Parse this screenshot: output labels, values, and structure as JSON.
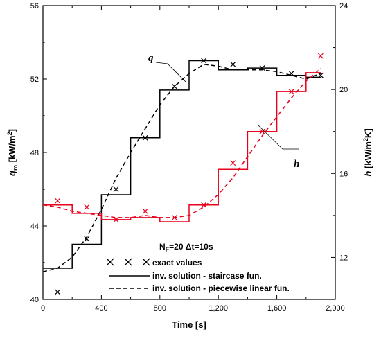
{
  "chart_data": {
    "type": "line",
    "xlabel": "Time [s]",
    "ylabel_left": {
      "main": "q",
      "sub": "m",
      "rest": " [kW/m",
      "sup": "2",
      "end": "]"
    },
    "ylabel_right": {
      "main": "h",
      "rest": " [kW/m",
      "sup": "2",
      "end": "K]"
    },
    "xlim": [
      0,
      2000
    ],
    "ylim_left": [
      40,
      56
    ],
    "ylim_right": [
      10,
      24
    ],
    "x_ticks": [
      0,
      400,
      800,
      1200,
      1600,
      2000
    ],
    "x_tick_labels": [
      "0",
      "400",
      "800",
      "1,200",
      "1,600",
      "2,000"
    ],
    "y_left_ticks": [
      40,
      44,
      48,
      52,
      56
    ],
    "y_left_tick_labels": [
      "40",
      "44",
      "48",
      "52",
      "56"
    ],
    "y_right_ticks": [
      12,
      16,
      20,
      24
    ],
    "y_right_tick_labels": [
      "12",
      "16",
      "20",
      "24"
    ],
    "annotations": {
      "q_label": "q",
      "h_label": "h",
      "params_text_main": "N",
      "params_text_sub": "F",
      "params_text_rest": "=20 Δt=10s"
    },
    "legend": {
      "placement": "bottom-center",
      "entries": [
        "exact values",
        "inv. solution - staircase fun.",
        "inv. solution - piecewise linear fun."
      ]
    },
    "colors": {
      "q": "#000000",
      "h": "#e8001c"
    },
    "series": [
      {
        "name": "q",
        "axis": "left",
        "exact": [
          [
            100,
            40.4
          ],
          [
            300,
            43.3
          ],
          [
            500,
            46.0
          ],
          [
            700,
            48.8
          ],
          [
            900,
            51.6
          ],
          [
            1100,
            53.0
          ],
          [
            1300,
            52.8
          ],
          [
            1500,
            52.6
          ],
          [
            1700,
            52.3
          ],
          [
            1900,
            52.2
          ]
        ],
        "staircase": [
          [
            0,
            200,
            41.7
          ],
          [
            200,
            400,
            43.0
          ],
          [
            400,
            600,
            45.7
          ],
          [
            600,
            800,
            48.8
          ],
          [
            800,
            1000,
            51.4
          ],
          [
            1000,
            1200,
            53.0
          ],
          [
            1200,
            1400,
            52.5
          ],
          [
            1400,
            1600,
            52.6
          ],
          [
            1600,
            1800,
            52.2
          ],
          [
            1800,
            1900,
            52.1
          ]
        ],
        "piecewise": [
          [
            0,
            41.5
          ],
          [
            100,
            41.7
          ],
          [
            200,
            42.3
          ],
          [
            300,
            43.4
          ],
          [
            400,
            44.9
          ],
          [
            500,
            46.6
          ],
          [
            600,
            48.0
          ],
          [
            700,
            49.3
          ],
          [
            800,
            50.6
          ],
          [
            900,
            51.6
          ],
          [
            1000,
            52.3
          ],
          [
            1100,
            52.8
          ],
          [
            1200,
            52.7
          ],
          [
            1300,
            52.5
          ],
          [
            1400,
            52.5
          ],
          [
            1500,
            52.5
          ],
          [
            1600,
            52.4
          ],
          [
            1700,
            52.2
          ],
          [
            1800,
            52.0
          ],
          [
            1900,
            52.3
          ]
        ]
      },
      {
        "name": "h",
        "axis": "right",
        "exact": [
          [
            100,
            14.7
          ],
          [
            300,
            14.4
          ],
          [
            500,
            13.8
          ],
          [
            700,
            14.2
          ],
          [
            900,
            13.9
          ],
          [
            1100,
            14.5
          ],
          [
            1300,
            16.5
          ],
          [
            1500,
            18.0
          ],
          [
            1700,
            19.9
          ],
          [
            1900,
            21.6
          ]
        ],
        "staircase": [
          [
            0,
            200,
            14.5
          ],
          [
            200,
            400,
            14.1
          ],
          [
            400,
            600,
            13.8
          ],
          [
            600,
            800,
            13.9
          ],
          [
            800,
            1000,
            13.7
          ],
          [
            1000,
            1200,
            14.5
          ],
          [
            1200,
            1400,
            16.2
          ],
          [
            1400,
            1600,
            18.0
          ],
          [
            1600,
            1800,
            19.9
          ],
          [
            1800,
            1900,
            20.8
          ]
        ],
        "piecewise": [
          [
            0,
            14.5
          ],
          [
            100,
            14.4
          ],
          [
            200,
            14.2
          ],
          [
            300,
            14.1
          ],
          [
            400,
            14.0
          ],
          [
            500,
            13.9
          ],
          [
            600,
            13.9
          ],
          [
            700,
            14.0
          ],
          [
            800,
            13.9
          ],
          [
            900,
            13.9
          ],
          [
            1000,
            14.0
          ],
          [
            1100,
            14.4
          ],
          [
            1200,
            15.0
          ],
          [
            1300,
            15.8
          ],
          [
            1400,
            16.8
          ],
          [
            1500,
            17.8
          ],
          [
            1600,
            18.7
          ],
          [
            1700,
            19.6
          ],
          [
            1800,
            20.4
          ],
          [
            1900,
            21.0
          ]
        ]
      }
    ]
  }
}
